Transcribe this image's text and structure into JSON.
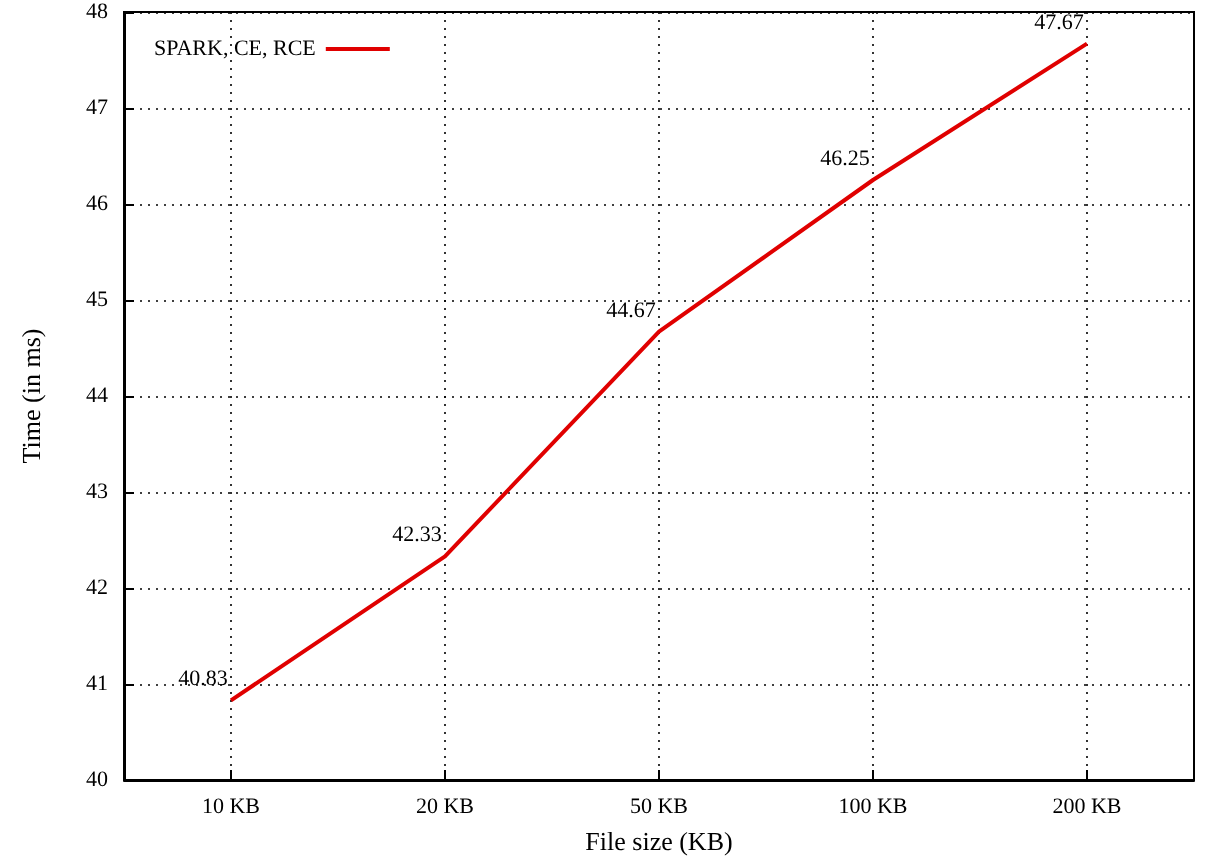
{
  "chart_data": {
    "type": "line",
    "xlabel": "File size (KB)",
    "ylabel": "Time (in ms)",
    "categories": [
      "10 KB",
      "20 KB",
      "50 KB",
      "100 KB",
      "200 KB"
    ],
    "series": [
      {
        "name": "SPARK, CE, RCE",
        "color": "#e00000",
        "values": [
          40.83,
          42.33,
          44.67,
          46.25,
          47.67
        ]
      }
    ],
    "ylim": [
      40,
      48
    ],
    "yticks": [
      40,
      41,
      42,
      43,
      44,
      45,
      46,
      47,
      48
    ],
    "grid": true,
    "legend": "top left",
    "data_labels": true,
    "marker": "none",
    "line_style": "solid"
  }
}
